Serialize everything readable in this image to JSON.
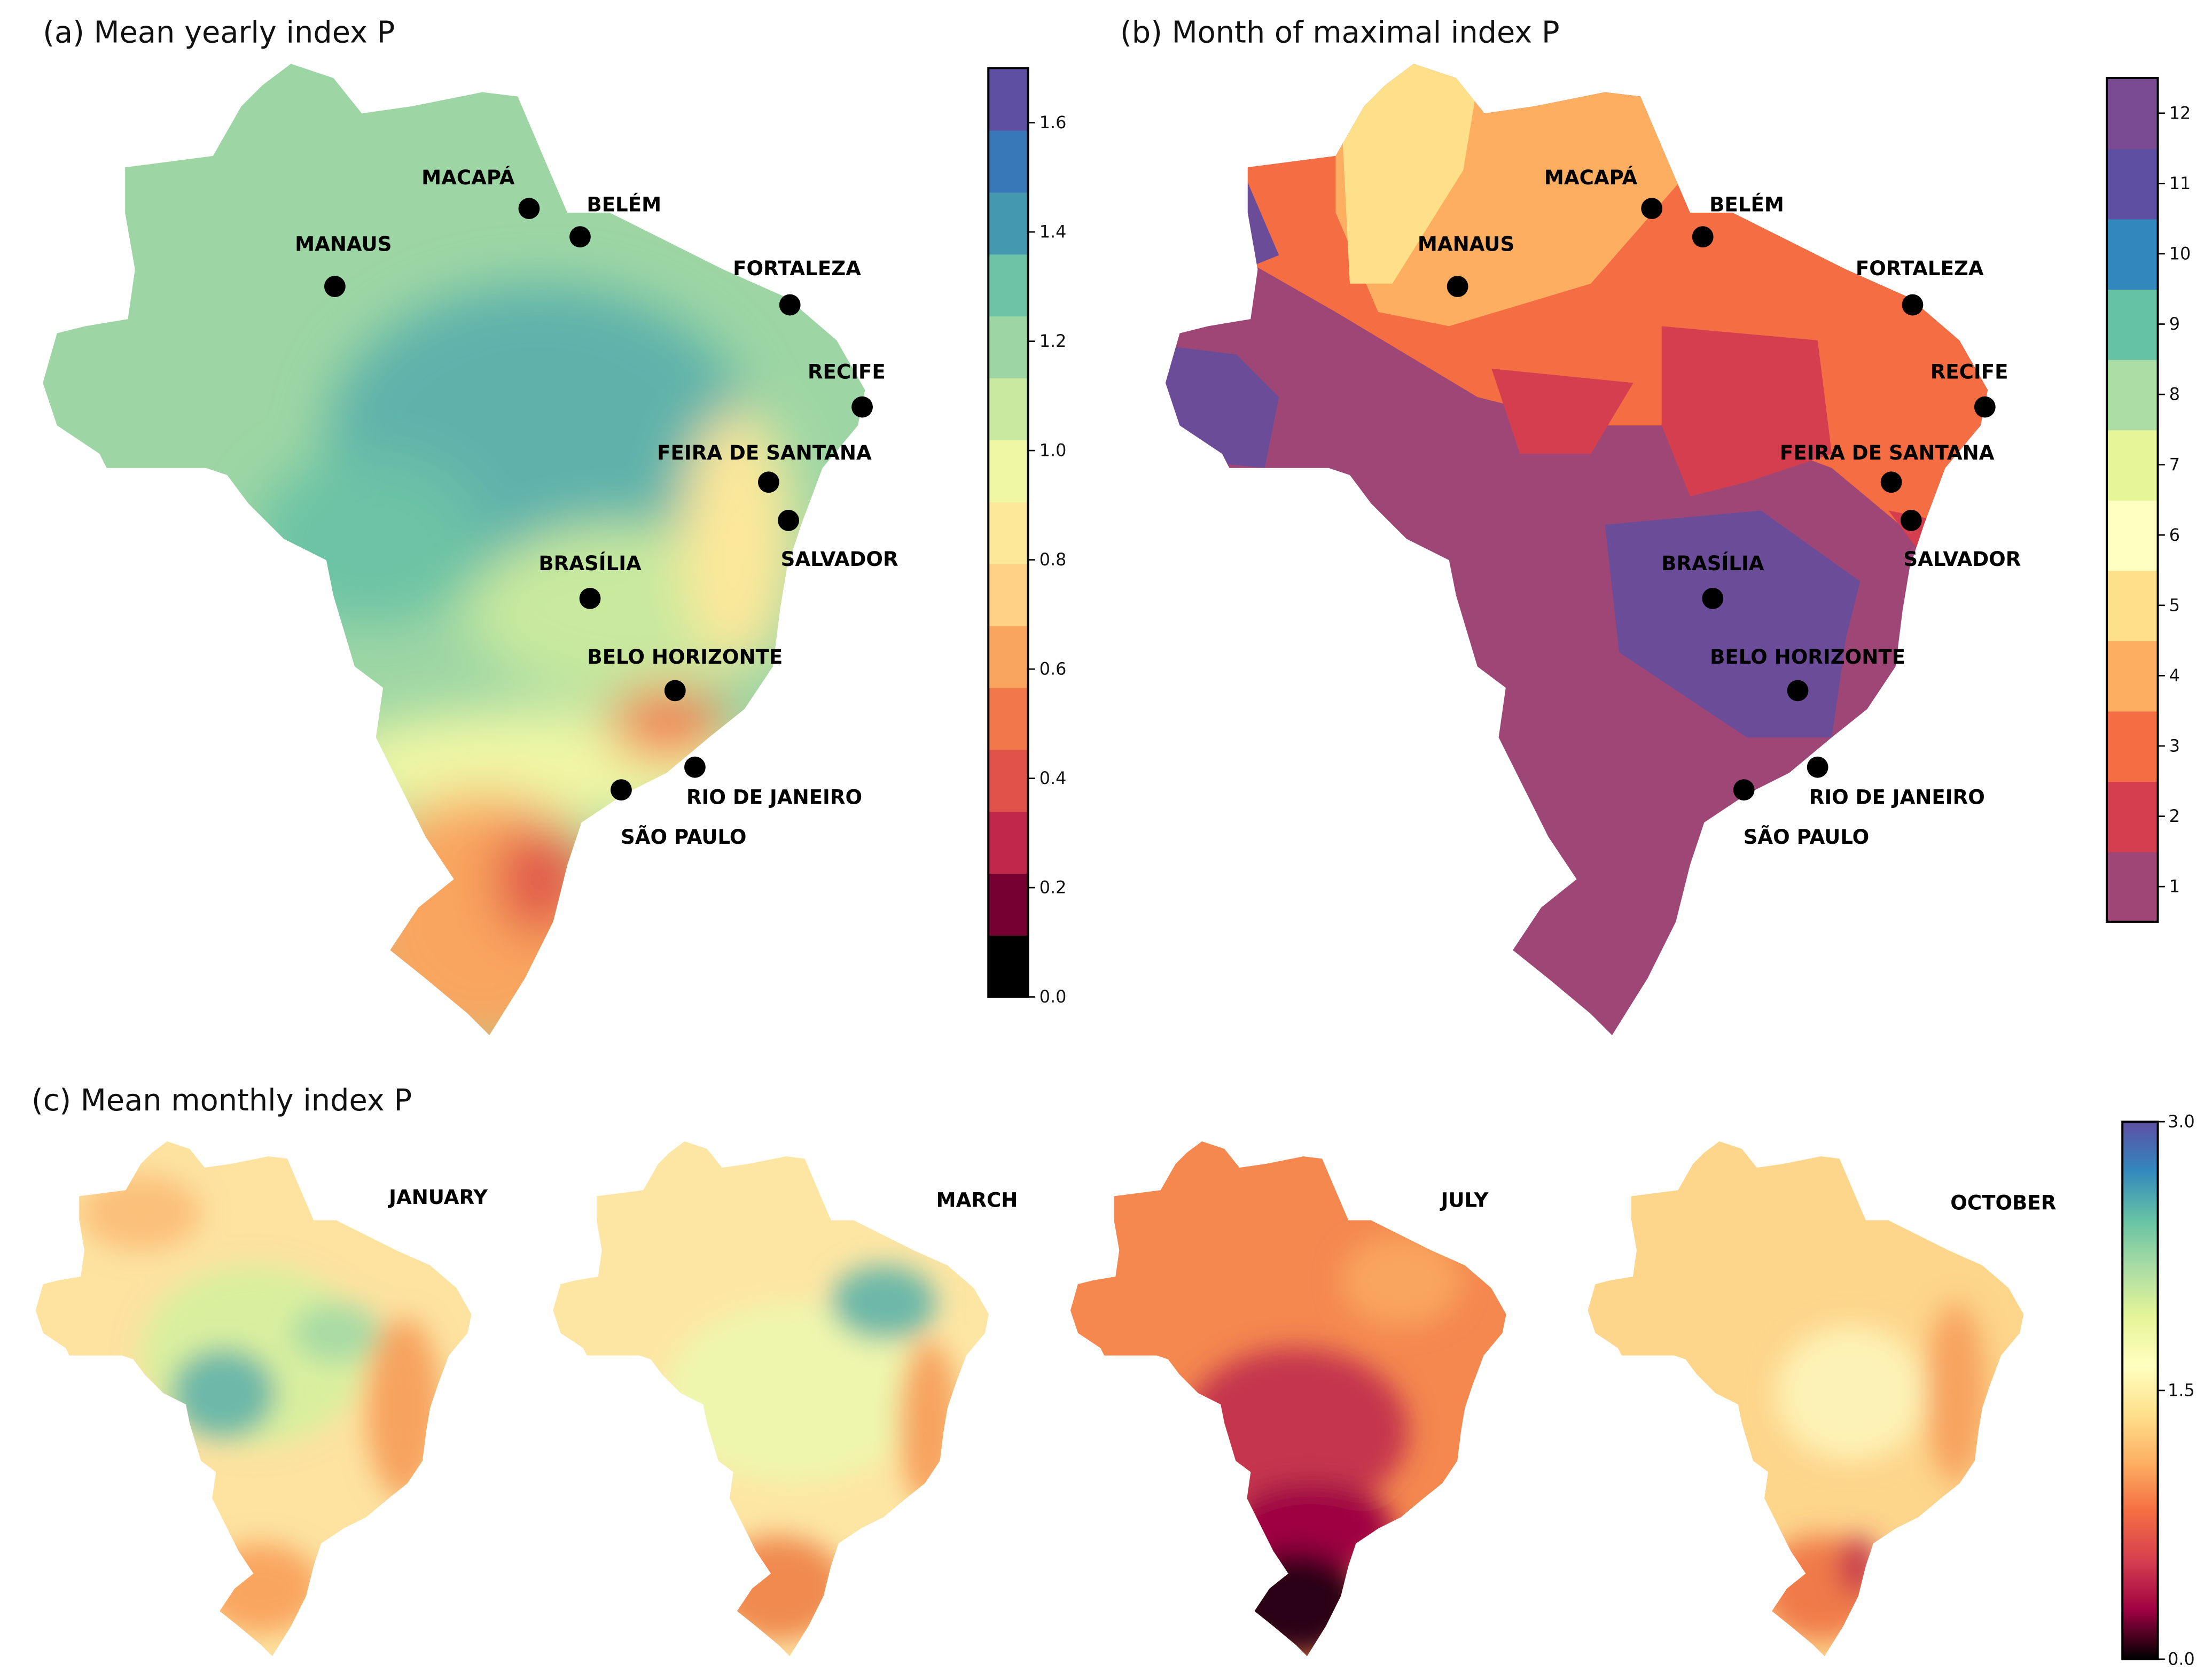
{
  "panels": {
    "a": {
      "title": "(a)  Mean yearly index P"
    },
    "b": {
      "title": "(b)  Month of maximal index P"
    },
    "c": {
      "title": "(c)  Mean monthly index P",
      "months": [
        "JANUARY",
        "MARCH",
        "JULY",
        "OCTOBER"
      ]
    }
  },
  "cities": [
    "MACAPÁ",
    "BELÉM",
    "MANAUS",
    "FORTALEZA",
    "RECIFE",
    "FEIRA DE SANTANA",
    "SALVADOR",
    "BRASÍLIA",
    "BELO HORIZONTE",
    "RIO DE JANEIRO",
    "SÃO PAULO"
  ],
  "colorbars": {
    "a": {
      "range": [
        0,
        1.7
      ],
      "levels": 15,
      "ticks": [
        "0.0",
        "0.2",
        "0.4",
        "0.6",
        "0.8",
        "1.0",
        "1.2",
        "1.4",
        "1.6"
      ],
      "colors": [
        "#000000",
        "#75002f",
        "#c0274a",
        "#e05249",
        "#f2774b",
        "#f9a55e",
        "#fdd085",
        "#fde89a",
        "#eff7a5",
        "#c8e99e",
        "#9dd6a4",
        "#6cc3a5",
        "#4499b0",
        "#3878b8",
        "#5e4fa2"
      ]
    },
    "b": {
      "range": [
        0.5,
        12.5
      ],
      "ticks": [
        "1",
        "2",
        "3",
        "4",
        "5",
        "6",
        "7",
        "8",
        "9",
        "10",
        "11",
        "12"
      ],
      "colors": [
        "#9e4776",
        "#d53e4f",
        "#f46d43",
        "#fdae61",
        "#fee08b",
        "#ffffbf",
        "#e6f598",
        "#abdda4",
        "#66c2a5",
        "#3288bd",
        "#5e4fa2",
        "#7a4b93"
      ]
    },
    "c": {
      "range": [
        0,
        3.0
      ],
      "ticks": [
        "0.0",
        "1.5",
        "3.0"
      ],
      "colors": [
        "#000000",
        "#9e0142",
        "#d53e4f",
        "#f46d43",
        "#fdae61",
        "#fee08b",
        "#ffffbf",
        "#e6f598",
        "#abdda4",
        "#66c2a5",
        "#3288bd",
        "#5e4fa2"
      ]
    }
  }
}
